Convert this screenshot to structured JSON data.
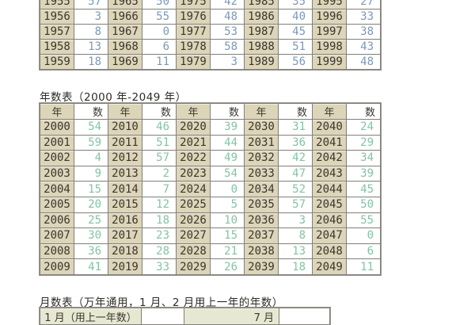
{
  "titles": {
    "years_2000": "年数表（2000 年-2049 年）",
    "months": "月数表（万年通用，1 月、2 月用上一年的年数）"
  },
  "table_1950s": {
    "description": "year-number table 1955-1999 (top rows cropped)",
    "rows": [
      [
        "1955",
        "57",
        "1965",
        "50",
        "1975",
        "42",
        "1985",
        "35",
        "1995",
        "27"
      ],
      [
        "1956",
        "3",
        "1966",
        "55",
        "1976",
        "48",
        "1986",
        "40",
        "1996",
        "33"
      ],
      [
        "1957",
        "8",
        "1967",
        "0",
        "1977",
        "53",
        "1987",
        "45",
        "1997",
        "38"
      ],
      [
        "1958",
        "13",
        "1968",
        "6",
        "1978",
        "58",
        "1988",
        "51",
        "1998",
        "43"
      ],
      [
        "1959",
        "18",
        "1969",
        "11",
        "1979",
        "3",
        "1989",
        "56",
        "1999",
        "48"
      ]
    ]
  },
  "table_2000s": {
    "header": [
      "年",
      "数",
      "年",
      "数",
      "年",
      "数",
      "年",
      "数",
      "年",
      "数"
    ],
    "rows": [
      [
        "2000",
        "54",
        "2010",
        "46",
        "2020",
        "39",
        "2030",
        "31",
        "2040",
        "24"
      ],
      [
        "2001",
        "59",
        "2011",
        "51",
        "2021",
        "44",
        "2031",
        "36",
        "2041",
        "29"
      ],
      [
        "2002",
        "4",
        "2012",
        "57",
        "2022",
        "49",
        "2032",
        "42",
        "2042",
        "34"
      ],
      [
        "2003",
        "9",
        "2013",
        "2",
        "2023",
        "54",
        "2033",
        "47",
        "2043",
        "39"
      ],
      [
        "2004",
        "15",
        "2014",
        "7",
        "2024",
        "0",
        "2034",
        "52",
        "2044",
        "45"
      ],
      [
        "2005",
        "20",
        "2015",
        "12",
        "2025",
        "5",
        "2035",
        "57",
        "2045",
        "50"
      ],
      [
        "2006",
        "25",
        "2016",
        "18",
        "2026",
        "10",
        "2036",
        "3",
        "2046",
        "55"
      ],
      [
        "2007",
        "30",
        "2017",
        "23",
        "2027",
        "15",
        "2037",
        "8",
        "2047",
        "0"
      ],
      [
        "2008",
        "36",
        "2018",
        "28",
        "2028",
        "21",
        "2038",
        "13",
        "2048",
        "6"
      ],
      [
        "2009",
        "41",
        "2019",
        "33",
        "2029",
        "26",
        "2039",
        "18",
        "2049",
        "11"
      ]
    ]
  },
  "table_months": {
    "description": "month-number table, only top sliver visible at crop",
    "rows": [
      [
        "1 月（用上一年数）",
        "",
        "7 月",
        ""
      ]
    ]
  },
  "colors": {
    "year_cell_bg": "#ddd5b8",
    "month_label_bg": "#e7e8d2",
    "num_blue": "#7d98b8",
    "num_green": "#83c4a4"
  }
}
